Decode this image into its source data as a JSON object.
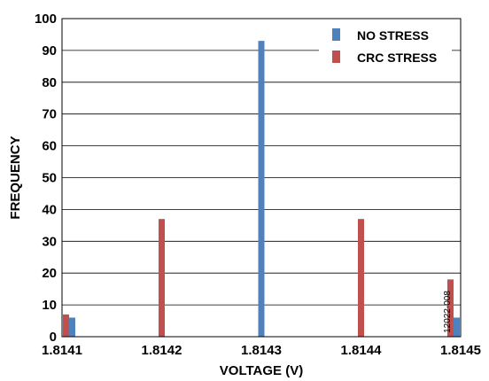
{
  "chart_data": {
    "type": "bar",
    "xlabel": "VOLTAGE (V)",
    "ylabel": "FREQUENCY",
    "ylim": [
      0,
      100
    ],
    "yticks": [
      0,
      10,
      20,
      30,
      40,
      50,
      60,
      70,
      80,
      90,
      100
    ],
    "xlim": [
      1.8141,
      1.8145
    ],
    "xticks": [
      "1.8141",
      "1.8142",
      "1.8143",
      "1.8144",
      "1.8145"
    ],
    "grid": "horizontal",
    "legend_position": "top-right",
    "figure_code": "12022-008",
    "series": [
      {
        "name": "NO STRESS",
        "color": "#4f81bd",
        "x": [
          1.8141,
          1.8143,
          1.8145
        ],
        "values": [
          6,
          93,
          6
        ]
      },
      {
        "name": "CRC STRESS",
        "color": "#c0504d",
        "x": [
          1.8141,
          1.8142,
          1.8144,
          1.8145
        ],
        "values": [
          7,
          37,
          37,
          18
        ]
      }
    ]
  }
}
